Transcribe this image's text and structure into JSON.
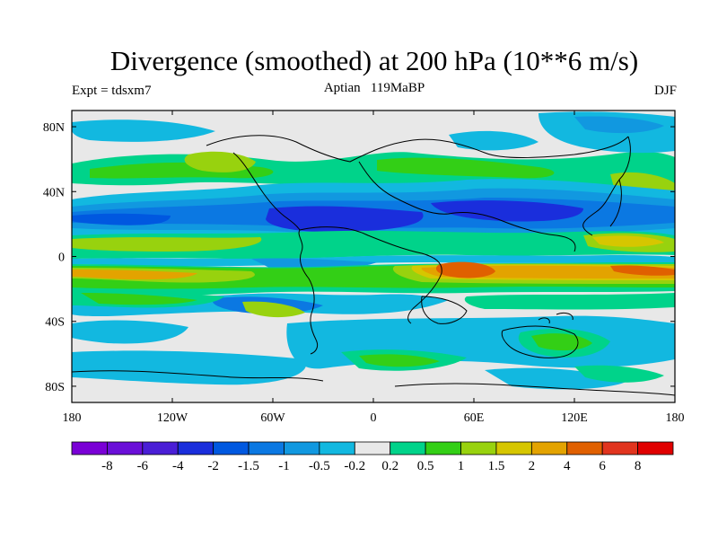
{
  "title": "Divergence (smoothed) at 200 hPa (10**6 m/s)",
  "experiment_label": "Expt = tdsxm7",
  "subtitle": "Aptian   119MaBP",
  "season": "DJF",
  "axes": {
    "x_ticks": [
      {
        "lon": -180,
        "label": "180"
      },
      {
        "lon": -120,
        "label": "120W"
      },
      {
        "lon": -60,
        "label": "60W"
      },
      {
        "lon": 0,
        "label": "0"
      },
      {
        "lon": 60,
        "label": "60E"
      },
      {
        "lon": 120,
        "label": "120E"
      },
      {
        "lon": 180,
        "label": "180"
      }
    ],
    "y_ticks": [
      {
        "lat": 80,
        "label": "80N"
      },
      {
        "lat": 40,
        "label": "40N"
      },
      {
        "lat": 0,
        "label": "0"
      },
      {
        "lat": -40,
        "label": "40S"
      },
      {
        "lat": -80,
        "label": "80S"
      }
    ],
    "lon_range": [
      -180,
      180
    ],
    "lat_range": [
      -90,
      90
    ]
  },
  "colorbar": {
    "colors": [
      "#7a00d6",
      "#6a0fd8",
      "#4a1ed6",
      "#1a2edc",
      "#0058e0",
      "#0b78e2",
      "#1198e0",
      "#12b8e0",
      "#e8e8e8",
      "#00d38a",
      "#33cf16",
      "#98d20e",
      "#d6c600",
      "#e3a300",
      "#e06000",
      "#e1341e",
      "#e00000"
    ],
    "labels": [
      "-8",
      "-6",
      "-4",
      "-2",
      "-1.5",
      "-1",
      "-0.5",
      "-0.2",
      "0.2",
      "0.5",
      "1",
      "1.5",
      "2",
      "4",
      "6",
      "8"
    ]
  },
  "colors": {
    "neutral": "#e8e8e8",
    "coast": "#000000"
  }
}
